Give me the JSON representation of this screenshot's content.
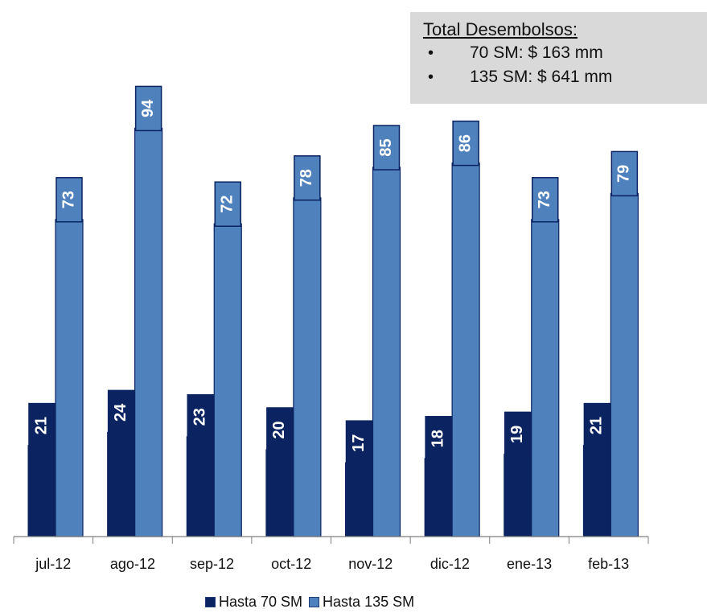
{
  "chart_data": {
    "type": "bar",
    "categories": [
      "jul-12",
      "ago-12",
      "sep-12",
      "oct-12",
      "nov-12",
      "dic-12",
      "ene-13",
      "feb-13"
    ],
    "series": [
      {
        "name": "Hasta 70 SM",
        "values": [
          21,
          24,
          23,
          20,
          17,
          18,
          19,
          21
        ],
        "color": "#0b2461"
      },
      {
        "name": "Hasta 135 SM",
        "values": [
          73,
          94,
          72,
          78,
          85,
          86,
          73,
          79
        ],
        "color": "#4f81bd"
      }
    ],
    "title": "",
    "xlabel": "",
    "ylabel": "",
    "ylim": [
      0,
      100
    ],
    "grid": false,
    "legend_position": "bottom",
    "data_labels": true
  },
  "summary": {
    "title": "Total Desembolsos:",
    "items": [
      {
        "bullet": "•",
        "text": "70 SM: $ 163 mm"
      },
      {
        "bullet": "•",
        "text": "135 SM: $ 641 mm"
      }
    ]
  },
  "colors": {
    "axis": "#7f7f7f",
    "label_border": "#ffffff",
    "label_text": "#ffffff",
    "box_background": "#d9d9d9",
    "series_70_border": "#0b2461",
    "series_135_border": "#0b2461"
  }
}
